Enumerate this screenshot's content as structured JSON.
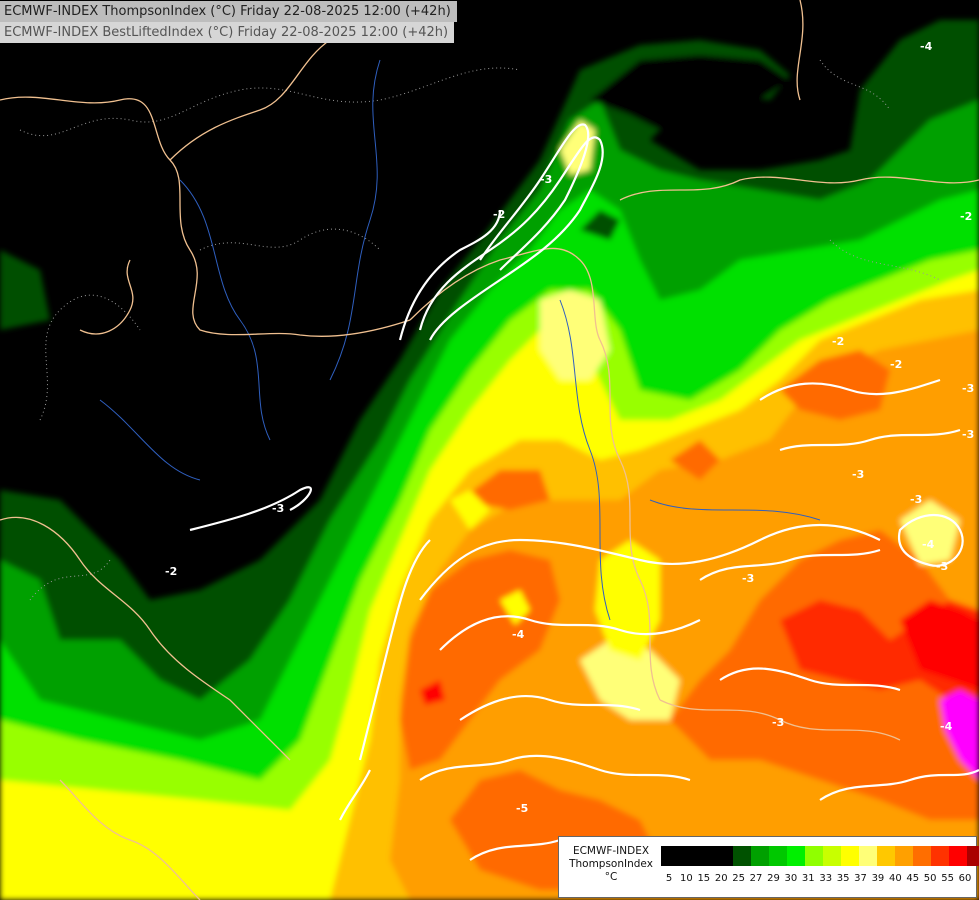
{
  "header": {
    "line1": "ECMWF-INDEX ThompsonIndex (°C) Friday 22-08-2025 12:00 (+42h)",
    "line2": "ECMWF-INDEX BestLiftedIndex (°C) Friday 22-08-2025 12:00 (+42h)"
  },
  "legend": {
    "title_line1": "ECMWF-INDEX",
    "title_line2": "ThompsonIndex",
    "unit": "°C",
    "colors": [
      "#000000",
      "#000000",
      "#000000",
      "#000000",
      "#005200",
      "#00a000",
      "#00c800",
      "#00f000",
      "#90ff00",
      "#c8ff00",
      "#ffff00",
      "#ffff78",
      "#ffc800",
      "#ffa000",
      "#ff6e00",
      "#ff3200",
      "#ff0000",
      "#aa0000",
      "#ff00ff",
      "#c800ff",
      "#9600ff",
      "#6400ff",
      "#0000ff"
    ],
    "ticks": [
      "5",
      "10",
      "15",
      "20",
      "25",
      "27",
      "29",
      "30",
      "31",
      "33",
      "35",
      "37",
      "39",
      "40",
      "45",
      "50",
      "55",
      "60"
    ]
  },
  "contour_labels": [
    "-2",
    "-3",
    "-2",
    "-2",
    "-3",
    "-3",
    "-3",
    "-4",
    "-3",
    "-4",
    "-3",
    "-5",
    "-3",
    "-3",
    "-2",
    "-4",
    "-4",
    "-3",
    "-2"
  ]
}
